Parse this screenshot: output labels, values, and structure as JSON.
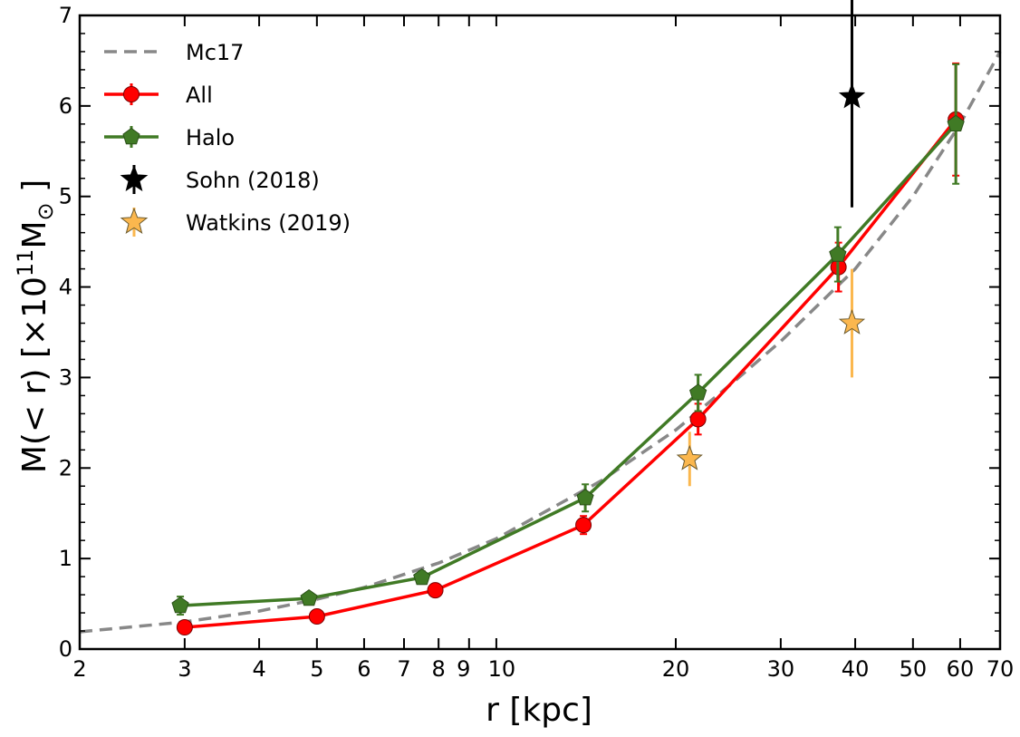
{
  "chart_data": {
    "type": "line",
    "title": "",
    "xlabel": "r [kpc]",
    "ylabel_main": "M(< r) [×10",
    "ylabel_sup": "11",
    "ylabel_sub_text": "M",
    "ylabel_sub": "⊙",
    "ylabel_end": "]",
    "xscale": "log",
    "xlim": [
      2,
      70
    ],
    "ylim": [
      0,
      7
    ],
    "x_ticks": [
      2,
      3,
      4,
      5,
      6,
      7,
      8,
      9,
      10,
      20,
      30,
      40,
      50,
      60,
      70
    ],
    "x_tick_labels": [
      "2",
      "3",
      "4",
      "5",
      "6",
      "7",
      "8",
      "9",
      "10",
      "20",
      "30",
      "40",
      "50",
      "60",
      "70"
    ],
    "y_ticks": [
      0,
      1,
      2,
      3,
      4,
      5,
      6,
      7
    ],
    "y_tick_labels": [
      "0",
      "1",
      "2",
      "3",
      "4",
      "5",
      "6",
      "7"
    ],
    "grid": false,
    "legend_placement": "top-left",
    "series": [
      {
        "name": "Mc17",
        "style": "dashed",
        "color": "#888888",
        "x": [
          2,
          3,
          4,
          5,
          6,
          8,
          10,
          15,
          20,
          25,
          30,
          40,
          50,
          60,
          70
        ],
        "y": [
          0.19,
          0.3,
          0.42,
          0.55,
          0.68,
          0.95,
          1.22,
          1.86,
          2.42,
          2.95,
          3.4,
          4.2,
          5.0,
          5.8,
          6.6
        ]
      },
      {
        "name": "All",
        "style": "line-circle",
        "color": "#ff0000",
        "x": [
          3.0,
          5.0,
          7.9,
          14.0,
          21.8,
          37.5,
          59.0
        ],
        "y": [
          0.24,
          0.36,
          0.65,
          1.37,
          2.54,
          4.22,
          5.85
        ],
        "yerr": [
          0.05,
          0.05,
          0.06,
          0.1,
          0.17,
          0.27,
          0.62
        ]
      },
      {
        "name": "Halo",
        "style": "line-pentagon",
        "color": "#407a25",
        "x": [
          2.95,
          4.85,
          7.5,
          14.1,
          21.8,
          37.4,
          59.0
        ],
        "y": [
          0.48,
          0.56,
          0.79,
          1.67,
          2.83,
          4.36,
          5.8
        ],
        "yerr": [
          0.1,
          0.06,
          0.07,
          0.15,
          0.2,
          0.3,
          0.66
        ]
      },
      {
        "name": "Sohn (2018)",
        "style": "star",
        "color": "#000000",
        "x": [
          39.5
        ],
        "y": [
          6.1
        ],
        "yerr_low": [
          1.22
        ],
        "yerr_high": [
          1.5
        ]
      },
      {
        "name": "Watkins (2019)",
        "style": "star",
        "color": "#fbb74e",
        "x": [
          21.1,
          39.5
        ],
        "y": [
          2.1,
          3.6
        ],
        "yerr": [
          0.3,
          0.6
        ]
      }
    ]
  }
}
